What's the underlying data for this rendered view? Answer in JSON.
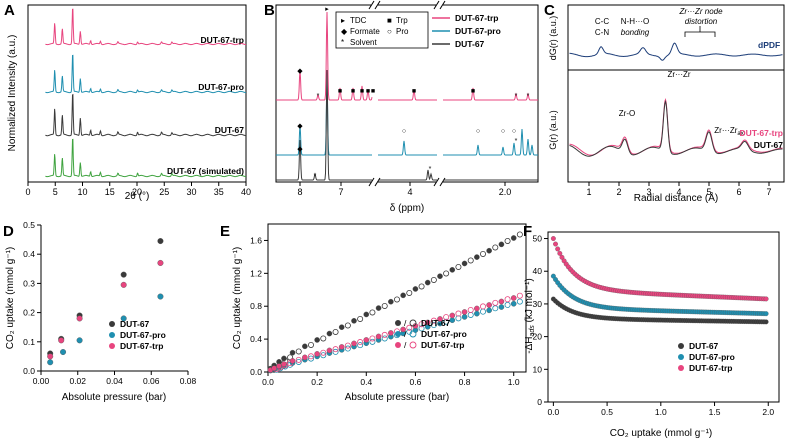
{
  "colors": {
    "pink": "#e8457f",
    "teal": "#1f8fb0",
    "black": "#3a3a3a",
    "green": "#3fa33f",
    "navy": "#1c3d78"
  },
  "chart_data": [
    {
      "panel": "A",
      "type": "line",
      "title": "",
      "xlabel": "2θ (°)",
      "ylabel": "Normalized Intensity (a.u.)",
      "xlim": [
        0,
        40
      ],
      "xticks": [
        "0",
        "5",
        "10",
        "15",
        "20",
        "25",
        "30",
        "35",
        "40"
      ],
      "series": [
        {
          "name": "DUT-67-trp",
          "color": "#e8457f",
          "peaks": [
            [
              4.9,
              0.55
            ],
            [
              6.3,
              0.4
            ],
            [
              8.2,
              1.0
            ],
            [
              9.6,
              0.35
            ],
            [
              11.5,
              0.1
            ],
            [
              13.3,
              0.08
            ],
            [
              16.5,
              0.05
            ],
            [
              20.1,
              0.06
            ],
            [
              24.5,
              0.05
            ],
            [
              26.4,
              0.05
            ]
          ]
        },
        {
          "name": "DUT-67-pro",
          "color": "#1f8fb0",
          "peaks": [
            [
              4.9,
              0.55
            ],
            [
              6.3,
              0.4
            ],
            [
              8.2,
              1.0
            ],
            [
              9.6,
              0.35
            ],
            [
              11.5,
              0.1
            ],
            [
              13.3,
              0.08
            ],
            [
              16.5,
              0.05
            ],
            [
              20.1,
              0.06
            ],
            [
              24.5,
              0.05
            ],
            [
              26.4,
              0.05
            ]
          ]
        },
        {
          "name": "DUT-67",
          "color": "#3a3a3a",
          "peaks": [
            [
              4.9,
              0.6
            ],
            [
              6.3,
              0.45
            ],
            [
              8.2,
              1.0
            ],
            [
              9.6,
              0.4
            ],
            [
              11.5,
              0.12
            ],
            [
              13.3,
              0.1
            ],
            [
              16.5,
              0.06
            ],
            [
              20.1,
              0.07
            ],
            [
              24.5,
              0.06
            ],
            [
              26.4,
              0.05
            ]
          ]
        },
        {
          "name": "DUT-67 (simulated)",
          "color": "#3fa33f",
          "peaks": [
            [
              4.9,
              0.55
            ],
            [
              6.3,
              0.45
            ],
            [
              8.2,
              1.0
            ],
            [
              9.6,
              0.35
            ],
            [
              11.5,
              0.12
            ],
            [
              13.3,
              0.1
            ],
            [
              16.5,
              0.06
            ],
            [
              20.1,
              0.08
            ],
            [
              24.5,
              0.06
            ],
            [
              26.4,
              0.06
            ]
          ]
        }
      ]
    },
    {
      "panel": "B",
      "type": "line",
      "xlabel": "δ (ppm)",
      "xticks": [
        "8",
        "7",
        "4",
        "2.0"
      ],
      "legend_symbols": [
        {
          "sym": "▸",
          "label": "TDC"
        },
        {
          "sym": "◆",
          "label": "Formate"
        },
        {
          "sym": "■",
          "label": "Trp"
        },
        {
          "sym": "○",
          "label": "Pro"
        },
        {
          "sym": "*",
          "label": "Solvent"
        }
      ],
      "series": [
        {
          "name": "DUT-67-trp",
          "color": "#e8457f"
        },
        {
          "name": "DUT-67-pro",
          "color": "#1f8fb0"
        },
        {
          "name": "DUT-67",
          "color": "#3a3a3a"
        }
      ]
    },
    {
      "panel": "C",
      "type": "line",
      "xlabel": "Radial distance (Å)",
      "ylabel_top": "dG(r) (a.u.)",
      "ylabel_bottom": "G(r) (a.u.)",
      "xlim": [
        0.3,
        7.5
      ],
      "xticks": [
        "1",
        "2",
        "3",
        "4",
        "5",
        "6",
        "7"
      ],
      "annotations": {
        "cc": "C-C",
        "cn": "C-N",
        "nho": "N-H···O",
        "bonding": "bonding",
        "zrnode": "Zr···Zr node",
        "distortion": "distortion",
        "zro": "Zr-O",
        "zrzr": "Zr···Zr",
        "zrzrax": "Zr···Zr",
        "ax": "ax"
      },
      "series": [
        {
          "name": "dPDF",
          "color": "#1c3d78"
        },
        {
          "name": "DUT-67-trp",
          "color": "#e8457f"
        },
        {
          "name": "DUT-67",
          "color": "#3a3a3a"
        }
      ]
    },
    {
      "panel": "D",
      "type": "scatter",
      "xlabel": "Absolute pressure (bar)",
      "ylabel": "CO₂ uptake (mmol g⁻¹)",
      "xlim": [
        0,
        0.08
      ],
      "ylim": [
        0,
        0.5
      ],
      "xticks": [
        "0.00",
        "0.02",
        "0.04",
        "0.06",
        "0.08"
      ],
      "yticks": [
        "0.0",
        "0.1",
        "0.2",
        "0.3",
        "0.4",
        "0.5"
      ],
      "series": [
        {
          "name": "DUT-67",
          "color": "#3a3a3a",
          "x": [
            0.005,
            0.011,
            0.021,
            0.045,
            0.065
          ],
          "y": [
            0.06,
            0.11,
            0.19,
            0.33,
            0.445
          ]
        },
        {
          "name": "DUT-67-pro",
          "color": "#1f8fb0",
          "x": [
            0.005,
            0.012,
            0.021,
            0.045,
            0.065
          ],
          "y": [
            0.03,
            0.065,
            0.105,
            0.18,
            0.255
          ]
        },
        {
          "name": "DUT-67-trp",
          "color": "#e8457f",
          "x": [
            0.005,
            0.011,
            0.021,
            0.045,
            0.065
          ],
          "y": [
            0.05,
            0.105,
            0.18,
            0.295,
            0.37
          ]
        }
      ]
    },
    {
      "panel": "E",
      "type": "scatter",
      "xlabel": "Absolute pressure (bar)",
      "ylabel": "CO₂ uptake (mmol g⁻¹)",
      "xlim": [
        0,
        1.05
      ],
      "ylim": [
        0,
        1.8
      ],
      "xticks": [
        "0.0",
        "0.2",
        "0.4",
        "0.6",
        "0.8",
        "1.0"
      ],
      "yticks": [
        "0.0",
        "0.4",
        "0.8",
        "1.2",
        "1.6"
      ],
      "legend_sep": "/",
      "series": [
        {
          "name": "DUT-67",
          "color": "#3a3a3a",
          "slope": 1.55,
          "intercept": 0.08
        },
        {
          "name": "DUT-67-pro",
          "color": "#1f8fb0",
          "slope": 0.8,
          "intercept": 0.03
        },
        {
          "name": "DUT-67-trp",
          "color": "#e8457f",
          "slope": 0.85,
          "intercept": 0.05
        }
      ]
    },
    {
      "panel": "F",
      "type": "scatter",
      "xlabel": "CO₂ uptake (mmol g⁻¹)",
      "ylabel": "-ΔH",
      "ylabel_sub": "ads",
      "ylabel_unit": " (kJ mol⁻¹)",
      "xlim": [
        -0.05,
        2.1
      ],
      "ylim": [
        0,
        52
      ],
      "xticks": [
        "0.0",
        "0.5",
        "1.0",
        "1.5",
        "2.0"
      ],
      "yticks": [
        "0",
        "10",
        "20",
        "30",
        "40",
        "50"
      ],
      "series": [
        {
          "name": "DUT-67",
          "color": "#3a3a3a",
          "start": 31.5,
          "end": 24.5
        },
        {
          "name": "DUT-67-pro",
          "color": "#1f8fb0",
          "start": 38.5,
          "end": 27.0
        },
        {
          "name": "DUT-67-trp",
          "color": "#e8457f",
          "start": 50.0,
          "end": 31.5
        }
      ]
    }
  ]
}
